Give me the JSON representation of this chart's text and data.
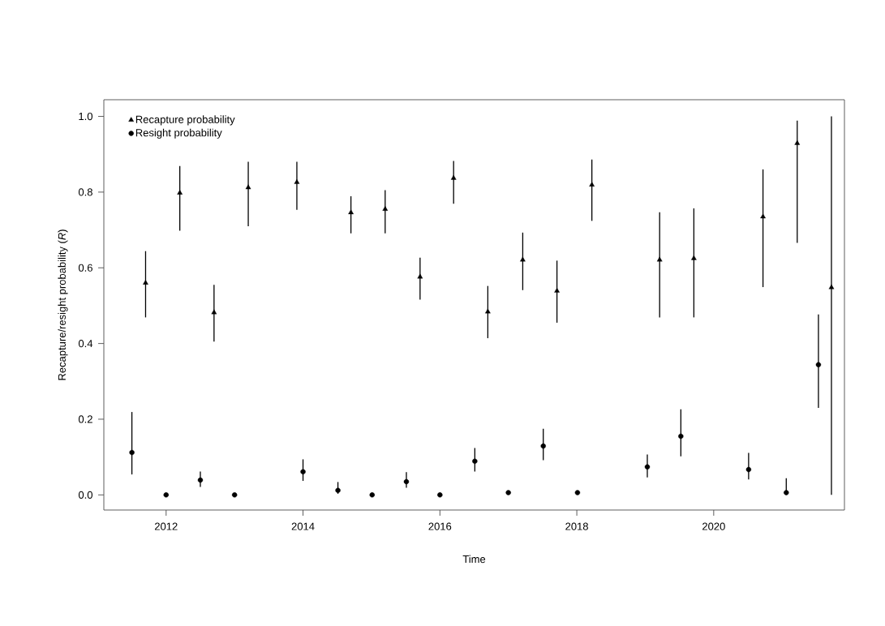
{
  "chart_data": {
    "type": "scatter",
    "xlabel": "Time",
    "ylabel": "Recapture/resight probability (*R*)",
    "xlim": [
      2011.09,
      2021.91
    ],
    "ylim": [
      -0.04,
      1.044
    ],
    "xticks": [
      2012,
      2014,
      2016,
      2018,
      2020
    ],
    "yticks": [
      {
        "value": 0,
        "label": "0.0"
      },
      {
        "value": 0.2,
        "label": "0.2"
      },
      {
        "value": 0.4,
        "label": "0.4"
      },
      {
        "value": 0.6,
        "label": "0.6"
      },
      {
        "value": 0.8,
        "label": "0.8"
      },
      {
        "value": 1,
        "label": "1.0"
      }
    ],
    "grid": false,
    "legend": "top left",
    "series": [
      {
        "name": "Recapture probability",
        "color": "#000000",
        "marker": "triangle",
        "x": [
          2011.7,
          2012.2,
          2012.7,
          2013.2,
          2013.91,
          2014.7,
          2015.2,
          2015.71,
          2016.2,
          2016.7,
          2017.21,
          2017.71,
          2018.22,
          2019.21,
          2019.71,
          2020.72,
          2021.22,
          2021.72
        ],
        "values": [
          0.56,
          0.798,
          0.482,
          0.812,
          0.826,
          0.746,
          0.755,
          0.576,
          0.837,
          0.484,
          0.621,
          0.539,
          0.819,
          0.621,
          0.625,
          0.735,
          0.929,
          0.548
        ],
        "errors": [
          [
            0.469,
            0.644
          ],
          [
            0.698,
            0.869
          ],
          [
            0.405,
            0.555
          ],
          [
            0.71,
            0.88
          ],
          [
            0.753,
            0.88
          ],
          [
            0.691,
            0.789
          ],
          [
            0.691,
            0.805
          ],
          [
            0.516,
            0.627
          ],
          [
            0.769,
            0.882
          ],
          [
            0.414,
            0.552
          ],
          [
            0.541,
            0.693
          ],
          [
            0.455,
            0.619
          ],
          [
            0.724,
            0.886
          ],
          [
            0.469,
            0.747
          ],
          [
            0.469,
            0.757
          ],
          [
            0.549,
            0.86
          ],
          [
            0.666,
            0.989
          ],
          [
            0.0,
            1.0
          ]
        ]
      },
      {
        "name": "Resight probability",
        "color": "#000000",
        "marker": "circle",
        "x": [
          2011.5,
          2012.0,
          2012.5,
          2013.0,
          2014.0,
          2014.51,
          2015.01,
          2015.51,
          2016.0,
          2016.51,
          2017.0,
          2017.51,
          2018.01,
          2019.03,
          2019.52,
          2020.51,
          2021.06,
          2021.53
        ],
        "values": [
          0.112,
          0.0,
          0.039,
          0.0,
          0.061,
          0.012,
          0.0,
          0.035,
          0.0,
          0.089,
          0.006,
          0.129,
          0.006,
          0.074,
          0.155,
          0.067,
          0.006,
          0.344
        ],
        "errors": [
          [
            0.054,
            0.219
          ],
          null,
          [
            0.021,
            0.062
          ],
          null,
          [
            0.037,
            0.094
          ],
          [
            0.003,
            0.034
          ],
          null,
          [
            0.019,
            0.06
          ],
          null,
          [
            0.062,
            0.124
          ],
          null,
          [
            0.092,
            0.175
          ],
          null,
          [
            0.046,
            0.107
          ],
          [
            0.102,
            0.226
          ],
          [
            0.041,
            0.111
          ],
          [
            0.0,
            0.044
          ],
          [
            0.23,
            0.477
          ]
        ]
      }
    ]
  }
}
